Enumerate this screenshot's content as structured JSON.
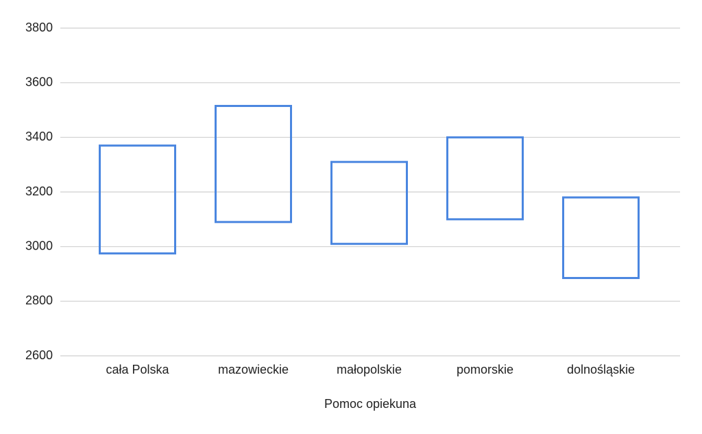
{
  "chart_data": {
    "type": "floating_bar",
    "x_label": "Pomoc opiekuna",
    "categories": [
      "cała Polska",
      "mazowieckie",
      "małopolskie",
      "pomorskie",
      "dolnośląskie"
    ],
    "low": [
      2975,
      3090,
      3010,
      3100,
      2885
    ],
    "high": [
      3370,
      3515,
      3310,
      3400,
      3180
    ],
    "color": "#4a86e0",
    "ylim": [
      2600,
      3800
    ],
    "yticks": [
      2600,
      2800,
      3000,
      3200,
      3400,
      3600,
      3800
    ],
    "grid": true
  }
}
